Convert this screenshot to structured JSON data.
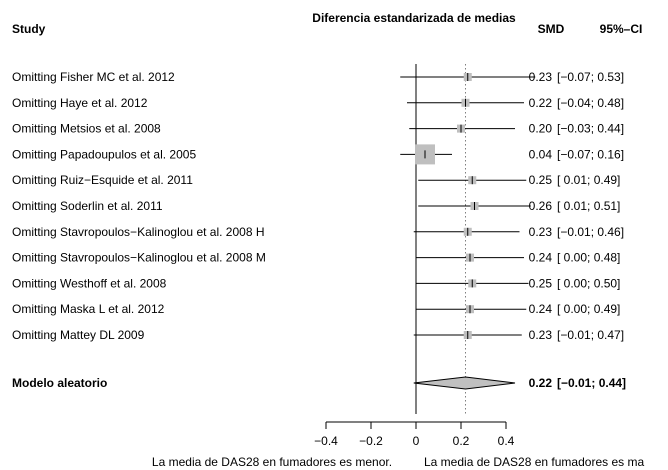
{
  "chart_data": {
    "type": "forest",
    "title": "Diferencia estandarizada de medias",
    "columns": {
      "study": "Study",
      "effect": "SMD",
      "ci": "95%–CI"
    },
    "studies": [
      {
        "label": "Omitting Fisher MC et al. 2012",
        "smd": 0.23,
        "lower": -0.07,
        "upper": 0.53,
        "smd_text": "0.23",
        "ci_text": "[−0.07; 0.53]",
        "weight": 1.0
      },
      {
        "label": "Omitting Haye et al. 2012",
        "smd": 0.22,
        "lower": -0.04,
        "upper": 0.48,
        "smd_text": "0.22",
        "ci_text": "[−0.04; 0.48]",
        "weight": 1.0
      },
      {
        "label": "Omitting Metsios et al. 2008",
        "smd": 0.2,
        "lower": -0.03,
        "upper": 0.44,
        "smd_text": "0.20",
        "ci_text": "[−0.03; 0.44]",
        "weight": 1.0
      },
      {
        "label": "Omitting Papadoupulos et al. 2005",
        "smd": 0.04,
        "lower": -0.07,
        "upper": 0.16,
        "smd_text": "0.04",
        "ci_text": "[−0.07; 0.16]",
        "weight": 2.5
      },
      {
        "label": "Omitting Ruiz−Esquide et al. 2011",
        "smd": 0.25,
        "lower": 0.01,
        "upper": 0.49,
        "smd_text": "0.25",
        "ci_text": "[ 0.01; 0.49]",
        "weight": 1.0
      },
      {
        "label": "Omitting Soderlin et al. 2011",
        "smd": 0.26,
        "lower": 0.01,
        "upper": 0.51,
        "smd_text": "0.26",
        "ci_text": "[ 0.01; 0.51]",
        "weight": 1.0
      },
      {
        "label": "Omitting Stavropoulos−Kalinoglou et al. 2008 H",
        "smd": 0.23,
        "lower": -0.01,
        "upper": 0.46,
        "smd_text": "0.23",
        "ci_text": "[−0.01; 0.46]",
        "weight": 1.0
      },
      {
        "label": "Omitting Stavropoulos−Kalinoglou et al. 2008 M",
        "smd": 0.24,
        "lower": 0.0,
        "upper": 0.48,
        "smd_text": "0.24",
        "ci_text": "[ 0.00; 0.48]",
        "weight": 1.0
      },
      {
        "label": "Omitting Westhoff et al. 2008",
        "smd": 0.25,
        "lower": 0.0,
        "upper": 0.5,
        "smd_text": "0.25",
        "ci_text": "[ 0.00; 0.50]",
        "weight": 1.0
      },
      {
        "label": "Omitting Maska L et al. 2012",
        "smd": 0.24,
        "lower": 0.0,
        "upper": 0.49,
        "smd_text": "0.24",
        "ci_text": "[ 0.00; 0.49]",
        "weight": 1.0
      },
      {
        "label": "Omitting Mattey DL 2009",
        "smd": 0.23,
        "lower": -0.01,
        "upper": 0.47,
        "smd_text": "0.23",
        "ci_text": "[−0.01; 0.47]",
        "weight": 1.0
      }
    ],
    "summary": {
      "label": "Modelo aleatorio",
      "smd": 0.22,
      "lower": -0.01,
      "upper": 0.44,
      "smd_text": "0.22",
      "ci_text": "[−0.01; 0.44]"
    },
    "x_ticks": [
      -0.4,
      -0.2,
      0,
      0.2,
      0.4
    ],
    "x_tick_labels": [
      "−0.4",
      "−0.2",
      "0",
      "0.2",
      "0.4"
    ],
    "xlim": [
      -0.4,
      0.5
    ],
    "reference_line": 0,
    "xlabel_left": "La media de DAS28 en fumadores es menor.",
    "xlabel_right": "La media de DAS28 en fumadores es ma",
    "colors": {
      "square": "#bfbfbf",
      "diamond": "#c0c0c0",
      "line": "#000000",
      "summary_line": "#7f7f7f"
    }
  }
}
